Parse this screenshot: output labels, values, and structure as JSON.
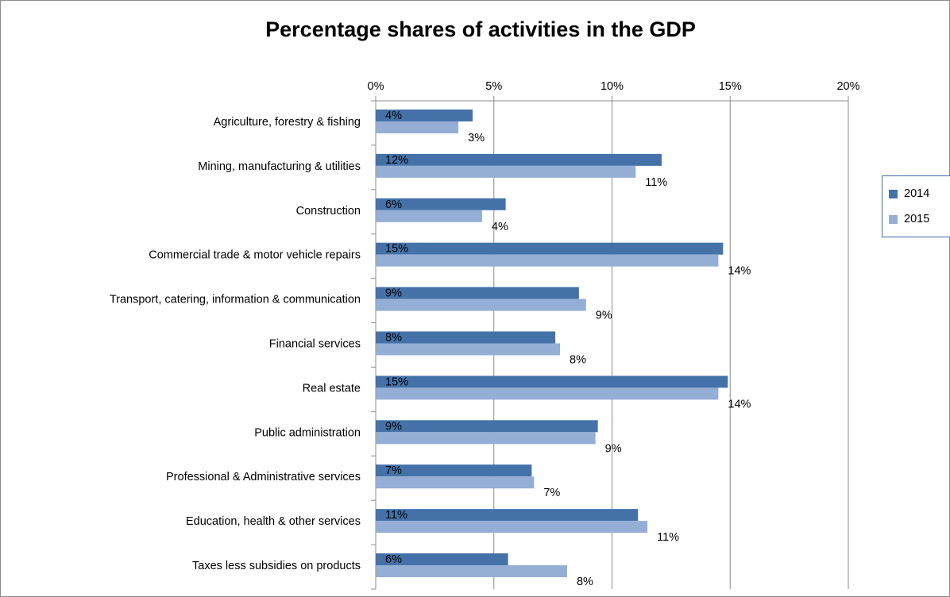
{
  "chart_data": {
    "type": "bar",
    "orientation": "horizontal",
    "title": "Percentage shares of activities in the GDP",
    "xlabel": "",
    "ylabel": "",
    "xlim": [
      0,
      20
    ],
    "x_ticks": [
      "0%",
      "5%",
      "10%",
      "15%",
      "20%"
    ],
    "x_tick_values": [
      0,
      5,
      10,
      15,
      20
    ],
    "x_axis_position": "top",
    "grid": true,
    "legend_position": "right",
    "categories": [
      "Agriculture, forestry & fishing",
      "Mining, manufacturing & utilities",
      "Construction",
      "Commercial trade & motor vehicle repairs",
      "Transport, catering, information & communication",
      "Financial services",
      "Real estate",
      "Public administration",
      "Professional & Administrative services",
      "Education, health & other services",
      "Taxes less subsidies on products"
    ],
    "series": [
      {
        "name": "2014",
        "color": "#4472a8",
        "values": [
          4.1,
          12.1,
          5.5,
          14.7,
          8.6,
          7.6,
          14.9,
          9.4,
          6.6,
          11.1,
          5.6
        ],
        "labels": [
          "4%",
          "12%",
          "6%",
          "15%",
          "9%",
          "8%",
          "15%",
          "9%",
          "7%",
          "11%",
          "6%"
        ]
      },
      {
        "name": "2015",
        "color": "#94aed6",
        "values": [
          3.5,
          11.0,
          4.5,
          14.5,
          8.9,
          7.8,
          14.5,
          9.3,
          6.7,
          11.5,
          8.1
        ],
        "labels": [
          "3%",
          "11%",
          "4%",
          "14%",
          "9%",
          "8%",
          "14%",
          "9%",
          "7%",
          "11%",
          "8%"
        ]
      }
    ]
  }
}
